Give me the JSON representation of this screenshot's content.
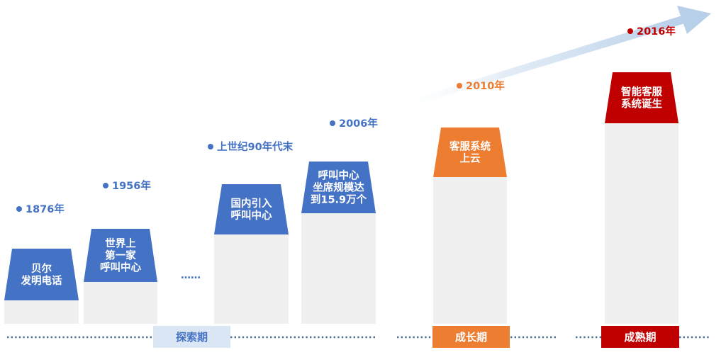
{
  "colors": {
    "blue": "#4472c4",
    "orange": "#ed7d31",
    "red": "#c00000",
    "pillar": "#f0f0f0",
    "phase_explore_bg": "#dae6f4",
    "arrow": "#c5d9ee"
  },
  "milestones": [
    {
      "year": "1876年",
      "label_lines": [
        "贝尔",
        "发明电话"
      ],
      "color": "blue"
    },
    {
      "year": "1956年",
      "label_lines": [
        "世界上",
        "第一家",
        "呼叫中心"
      ],
      "color": "blue"
    },
    {
      "year": "上世纪90年代末",
      "label_lines": [
        "国内引入",
        "呼叫中心"
      ],
      "color": "blue"
    },
    {
      "year": "2006年",
      "label_lines": [
        "呼叫中心",
        "坐席规模达",
        "到15.9万个"
      ],
      "color": "blue"
    },
    {
      "year": "2010年",
      "label_lines": [
        "客服系统",
        "上云"
      ],
      "color": "orange"
    },
    {
      "year": "2016年",
      "label_lines": [
        "智能客服",
        "系统诞生"
      ],
      "color": "red"
    }
  ],
  "ellipsis": "……",
  "phases": [
    {
      "label": "探索期",
      "color": "blue"
    },
    {
      "label": "成长期",
      "color": "orange"
    },
    {
      "label": "成熟期",
      "color": "red"
    }
  ]
}
